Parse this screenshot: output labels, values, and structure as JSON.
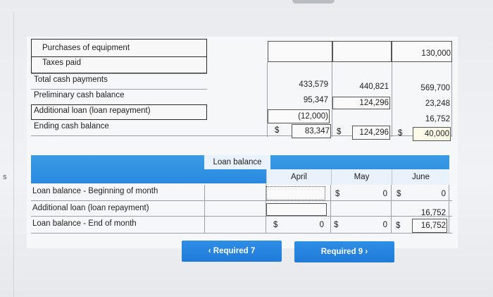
{
  "stray_char": "s",
  "cash_budget": {
    "rows": [
      {
        "label": "Purchases of equipment"
      },
      {
        "label": "Taxes paid"
      },
      {
        "label": "Total cash payments"
      },
      {
        "label": "Preliminary cash balance"
      },
      {
        "label": "Additional loan (loan repayment)"
      },
      {
        "label": "Ending cash balance"
      }
    ],
    "purchases_june": "130,000",
    "totals": {
      "april": "433,579",
      "may": "440,821",
      "june": "569,700"
    },
    "preliminary": {
      "april": "95,347",
      "may": "124,296",
      "june": "23,248"
    },
    "additional_loan": {
      "april": "(12,000)",
      "june": "16,752"
    },
    "ending": {
      "currency": "$",
      "april": "83,347",
      "may": "124,296",
      "june": "40,000"
    }
  },
  "loan_balance": {
    "title": "Loan balance",
    "months": [
      "April",
      "May",
      "June"
    ],
    "rows": [
      {
        "label": "Loan balance - Beginning of month"
      },
      {
        "label": "Additional loan (loan repayment)"
      },
      {
        "label": "Loan balance - End of month"
      }
    ],
    "beginning": {
      "currency": "$",
      "may": "0",
      "june": "0"
    },
    "additional": {
      "june": "16,752"
    },
    "end": {
      "currency": "$",
      "april": "0",
      "may": "0",
      "june": "16,752"
    }
  },
  "nav": {
    "prev_label": "Required 7",
    "prev_icon": "chevron-left-icon",
    "next_label": "Required 9",
    "next_icon": "chevron-right-icon",
    "button_color": "#2a86df"
  }
}
